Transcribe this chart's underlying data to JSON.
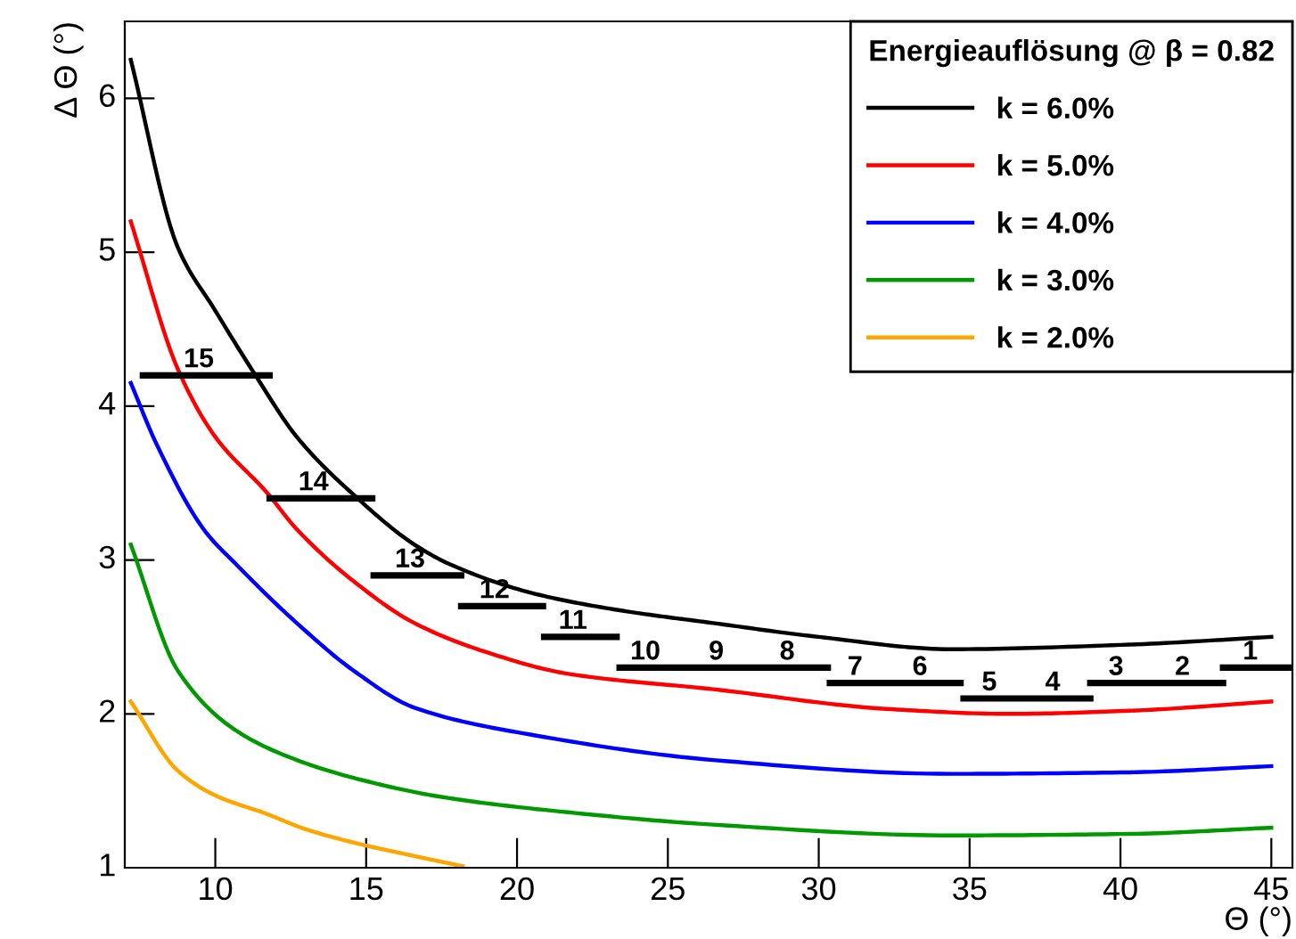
{
  "chart_data": {
    "type": "line",
    "xlabel": "Θ (°)",
    "ylabel": "Δ Θ (°)",
    "legend_title": "Energieauflösung @ β = 0.82",
    "xlim": [
      7,
      45.7
    ],
    "ylim": [
      1,
      6.5
    ],
    "xticks": [
      10,
      15,
      20,
      25,
      30,
      35,
      40,
      45
    ],
    "yticks": [
      1,
      2,
      3,
      4,
      5,
      6
    ],
    "grid": false,
    "legend": "top right",
    "marker": "none",
    "line_style": "solid",
    "series": [
      {
        "name": "k = 6.0%",
        "color": "#000000",
        "x": [
          7.2,
          8.76,
          10.0,
          11.3,
          12.7,
          14.66,
          16.6,
          17.8,
          20.6,
          23.5,
          26.5,
          30.0,
          34.4,
          40.3,
          45.0
        ],
        "values": [
          6.25,
          5.03,
          4.62,
          4.21,
          3.8,
          3.41,
          3.1,
          2.97,
          2.78,
          2.67,
          2.59,
          2.5,
          2.42,
          2.45,
          2.5
        ]
      },
      {
        "name": "k = 5.0%",
        "color": "#ff0000",
        "x": [
          7.2,
          8.76,
          10.0,
          11.7,
          12.7,
          14.66,
          16.6,
          19.0,
          21.7,
          26.5,
          32.4,
          36.3,
          40.3,
          45.0
        ],
        "values": [
          5.2,
          4.24,
          3.8,
          3.44,
          3.2,
          2.85,
          2.59,
          2.4,
          2.26,
          2.16,
          2.03,
          2.0,
          2.02,
          2.08
        ]
      },
      {
        "name": "k = 4.0%",
        "color": "#0000ff",
        "x": [
          7.2,
          8.06,
          9.65,
          10.7,
          12.7,
          14.66,
          16.6,
          20.6,
          26.5,
          34.4,
          40.3,
          45.0
        ],
        "values": [
          4.15,
          3.75,
          3.19,
          2.97,
          2.59,
          2.27,
          2.04,
          1.86,
          1.7,
          1.61,
          1.62,
          1.66
        ]
      },
      {
        "name": "k = 3.0%",
        "color": "#009900",
        "x": [
          7.2,
          8.76,
          10.7,
          12.7,
          14.66,
          17.5,
          21.7,
          26.5,
          34.4,
          40.3,
          45.0
        ],
        "values": [
          3.1,
          2.28,
          1.89,
          1.7,
          1.58,
          1.46,
          1.36,
          1.28,
          1.21,
          1.22,
          1.26
        ]
      },
      {
        "name": "k = 2.0%",
        "color": "#ffa500",
        "x": [
          7.2,
          8.76,
          10.0,
          11.7,
          13.0,
          14.66,
          16.5,
          18.2
        ],
        "values": [
          2.08,
          1.63,
          1.47,
          1.35,
          1.25,
          1.16,
          1.08,
          1.01
        ]
      },
      {
        "color": "#000000",
        "x": [
          7.6,
          11.8
        ],
        "values": [
          4.2,
          4.2
        ]
      },
      {
        "color": "#000000",
        "x": [
          11.8,
          15.2
        ],
        "values": [
          3.4,
          3.4
        ]
      },
      {
        "color": "#000000",
        "x": [
          15.25,
          18.15
        ],
        "values": [
          2.9,
          2.9
        ]
      },
      {
        "color": "#000000",
        "x": [
          18.15,
          20.86
        ],
        "values": [
          2.7,
          2.7
        ]
      },
      {
        "color": "#000000",
        "x": [
          20.9,
          23.3
        ],
        "values": [
          2.5,
          2.5
        ]
      },
      {
        "color": "#000000",
        "x": [
          23.4,
          30.3
        ],
        "values": [
          2.3,
          2.3
        ]
      },
      {
        "color": "#000000",
        "x": [
          30.37,
          34.7
        ],
        "values": [
          2.2,
          2.2
        ]
      },
      {
        "color": "#000000",
        "x": [
          34.8,
          39.0
        ],
        "values": [
          2.1,
          2.1
        ]
      },
      {
        "color": "#000000",
        "x": [
          39.0,
          43.4
        ],
        "values": [
          2.2,
          2.2
        ]
      },
      {
        "color": "#000000",
        "x": [
          43.4,
          45.7
        ],
        "values": [
          2.3,
          2.3
        ]
      }
    ],
    "annotations": [
      {
        "text": "15",
        "x": 9.7,
        "y": 4.2
      },
      {
        "text": "14",
        "x": 13.5,
        "y": 3.4
      },
      {
        "text": "13",
        "x": 16.7,
        "y": 2.9
      },
      {
        "text": "12",
        "x": 19.5,
        "y": 2.7
      },
      {
        "text": "11",
        "x": 22.1,
        "y": 2.5
      },
      {
        "text": "10",
        "x": 24.5,
        "y": 2.3
      },
      {
        "text": "9",
        "x": 26.85,
        "y": 2.3
      },
      {
        "text": "8",
        "x": 29.2,
        "y": 2.3
      },
      {
        "text": "7",
        "x": 31.45,
        "y": 2.2
      },
      {
        "text": "6",
        "x": 33.6,
        "y": 2.2
      },
      {
        "text": "5",
        "x": 35.9,
        "y": 2.1
      },
      {
        "text": "4",
        "x": 38.0,
        "y": 2.1
      },
      {
        "text": "3",
        "x": 40.1,
        "y": 2.2
      },
      {
        "text": "2",
        "x": 42.3,
        "y": 2.2
      },
      {
        "text": "1",
        "x": 44.55,
        "y": 2.3
      }
    ]
  }
}
